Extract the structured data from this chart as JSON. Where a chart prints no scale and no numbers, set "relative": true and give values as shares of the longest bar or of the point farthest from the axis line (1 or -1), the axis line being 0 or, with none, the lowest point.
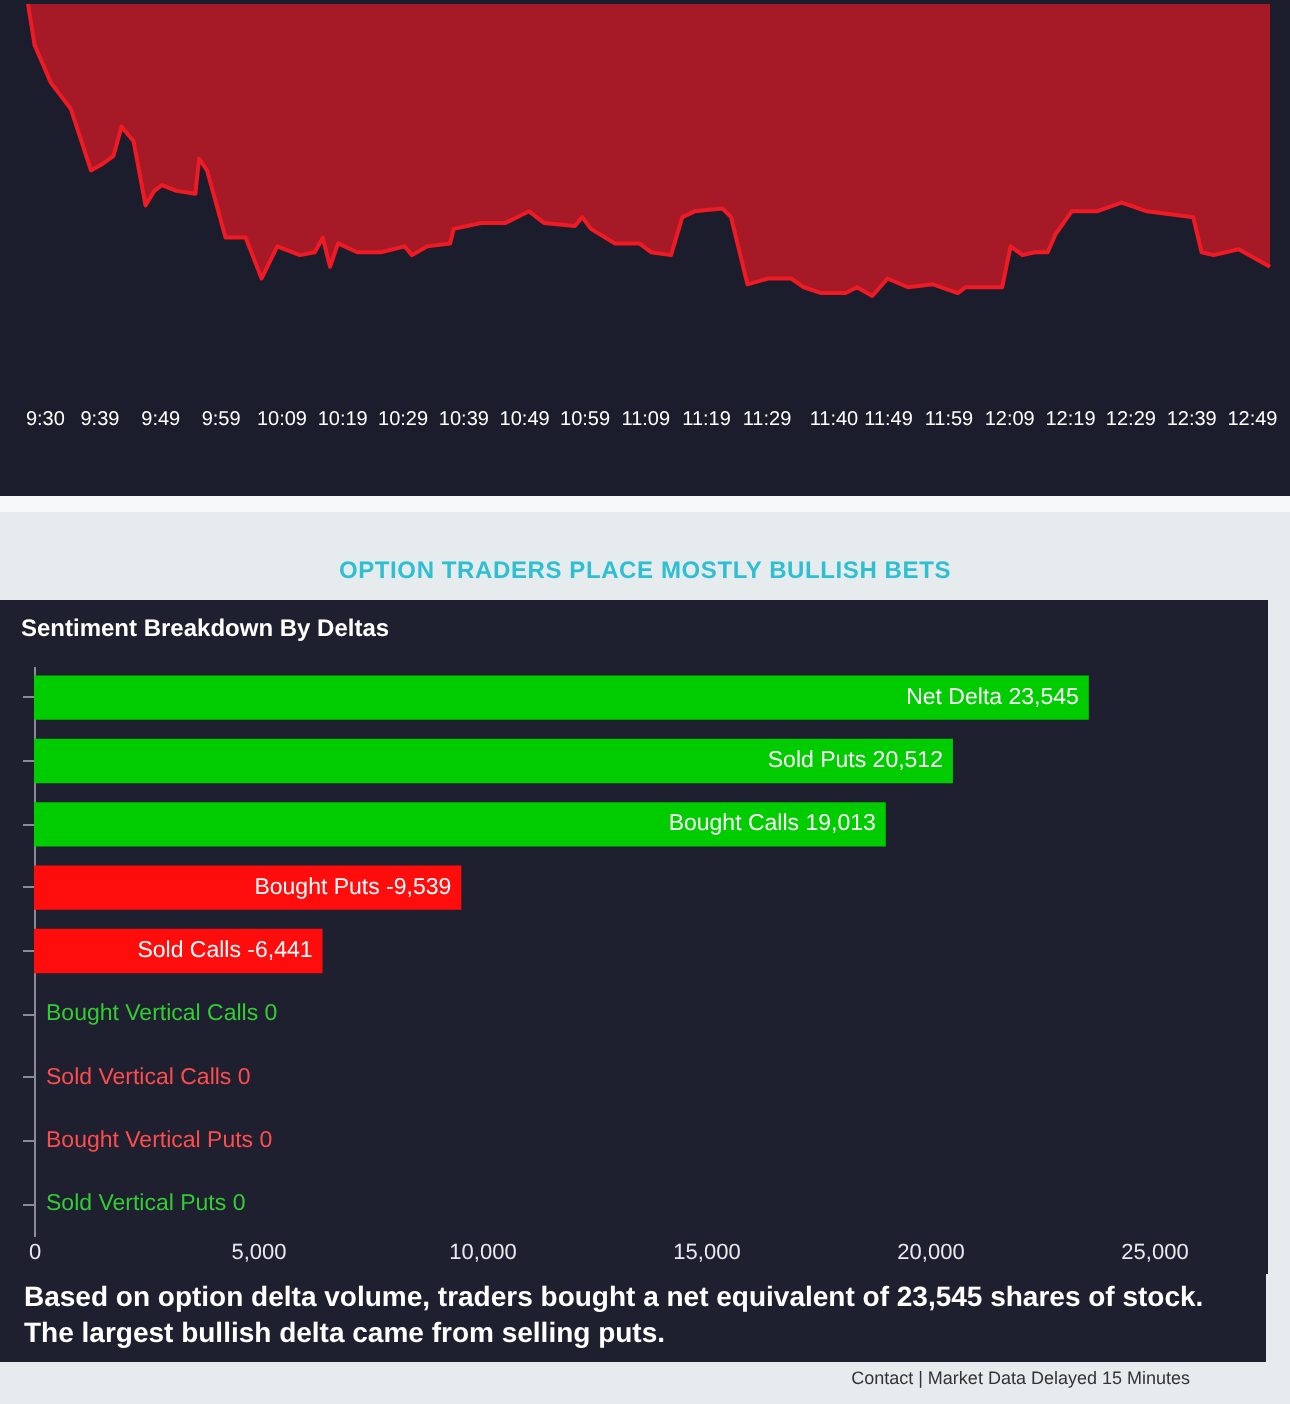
{
  "chart_data": [
    {
      "type": "area",
      "relative": true,
      "x": [
        9.455,
        9.473,
        9.518,
        9.573,
        9.628,
        9.657,
        9.69,
        9.712,
        9.745,
        9.778,
        9.802,
        9.823,
        9.863,
        9.915,
        9.925,
        9.947,
        9.998,
        10.053,
        10.097,
        10.14,
        10.202,
        10.243,
        10.265,
        10.285,
        10.307,
        10.36,
        10.425,
        10.49,
        10.51,
        10.552,
        10.615,
        10.625,
        10.7,
        10.767,
        10.832,
        10.873,
        10.958,
        10.978,
        11.002,
        11.068,
        11.135,
        11.167,
        11.222,
        11.253,
        11.287,
        11.363,
        11.387,
        11.432,
        11.49,
        11.552,
        11.587,
        11.635,
        11.702,
        11.733,
        11.775,
        11.817,
        11.873,
        11.942,
        12.01,
        12.032,
        12.132,
        12.155,
        12.188,
        12.222,
        12.257,
        12.278,
        12.323,
        12.392,
        12.46,
        12.53,
        12.657,
        12.68,
        12.713,
        12.782,
        12.868
      ],
      "series": [
        {
          "color": "#f01a24",
          "values": [
            1.0,
            0.86,
            0.73,
            0.64,
            0.43,
            0.45,
            0.48,
            0.58,
            0.53,
            0.31,
            0.36,
            0.38,
            0.36,
            0.35,
            0.47,
            0.43,
            0.2,
            0.2,
            0.06,
            0.17,
            0.14,
            0.15,
            0.2,
            0.1,
            0.18,
            0.15,
            0.15,
            0.17,
            0.14,
            0.17,
            0.18,
            0.23,
            0.25,
            0.25,
            0.29,
            0.25,
            0.24,
            0.27,
            0.23,
            0.18,
            0.18,
            0.15,
            0.14,
            0.27,
            0.29,
            0.3,
            0.27,
            0.04,
            0.06,
            0.06,
            0.03,
            0.01,
            0.01,
            0.03,
            0.0,
            0.06,
            0.03,
            0.04,
            0.01,
            0.03,
            0.03,
            0.17,
            0.14,
            0.15,
            0.15,
            0.21,
            0.29,
            0.29,
            0.32,
            0.29,
            0.27,
            0.15,
            0.14,
            0.16,
            0.1
          ]
        }
      ],
      "xlim": [
        9.455,
        12.868
      ],
      "xticks": [
        {
          "value": 9.5,
          "label": "9:30"
        },
        {
          "value": 9.65,
          "label": "9:39"
        },
        {
          "value": 9.817,
          "label": "9:49"
        },
        {
          "value": 9.983,
          "label": "9:59"
        },
        {
          "value": 10.15,
          "label": "10:09"
        },
        {
          "value": 10.317,
          "label": "10:19"
        },
        {
          "value": 10.483,
          "label": "10:29"
        },
        {
          "value": 10.65,
          "label": "10:39"
        },
        {
          "value": 10.817,
          "label": "10:49"
        },
        {
          "value": 10.983,
          "label": "10:59"
        },
        {
          "value": 11.15,
          "label": "11:09"
        },
        {
          "value": 11.317,
          "label": "11:19"
        },
        {
          "value": 11.483,
          "label": "11:29"
        },
        {
          "value": 11.667,
          "label": "11:40"
        },
        {
          "value": 11.817,
          "label": "11:49"
        },
        {
          "value": 11.983,
          "label": "11:59"
        },
        {
          "value": 12.15,
          "label": "12:09"
        },
        {
          "value": 12.317,
          "label": "12:19"
        },
        {
          "value": 12.483,
          "label": "12:29"
        },
        {
          "value": 12.65,
          "label": "12:39"
        },
        {
          "value": 12.817,
          "label": "12:49"
        }
      ]
    },
    {
      "type": "bar",
      "orientation": "horizontal",
      "title": "OPTION TRADERS PLACE MOSTLY BULLISH BETS",
      "subtitle": "Sentiment Breakdown By Deltas",
      "categories": [
        "Net Delta",
        "Sold Puts",
        "Bought Calls",
        "Bought Puts",
        "Sold Calls",
        "Bought Vertical Calls",
        "Sold Vertical Calls",
        "Bought Vertical Puts",
        "Sold Vertical Puts"
      ],
      "values": [
        23545,
        20512,
        19013,
        -9539,
        -6441,
        0,
        0,
        0,
        0
      ],
      "base": [
        null,
        null,
        null,
        9539,
        6441,
        null,
        null,
        null,
        null
      ],
      "colors": [
        "#00cc00",
        "#00cc00",
        "#00cc00",
        "#ff0d0d",
        "#ff0d0d",
        "#33cc33",
        "#ff4d4d",
        "#ff4d4d",
        "#33cc33"
      ],
      "value_labels": [
        "23,545",
        "20,512",
        "19,013",
        "-9,539",
        "-6,441",
        "0",
        "0",
        "0",
        "0"
      ],
      "xlim": [
        0,
        25000
      ],
      "xticks": [
        0,
        {
          "value": 5000,
          "label": "5,000"
        },
        {
          "value": 10000,
          "label": "10,000"
        },
        {
          "value": 15000,
          "label": "15,000"
        },
        {
          "value": 20000,
          "label": "20,000"
        },
        {
          "value": 25000,
          "label": "25,000"
        }
      ],
      "tick_labels": "x",
      "annotations": [
        "Based on option delta volume, traders bought a net equivalent of 23,545 shares of stock. The largest bullish delta came from selling puts.",
        "Contact | Market Data Delayed 15 Minutes"
      ]
    }
  ]
}
